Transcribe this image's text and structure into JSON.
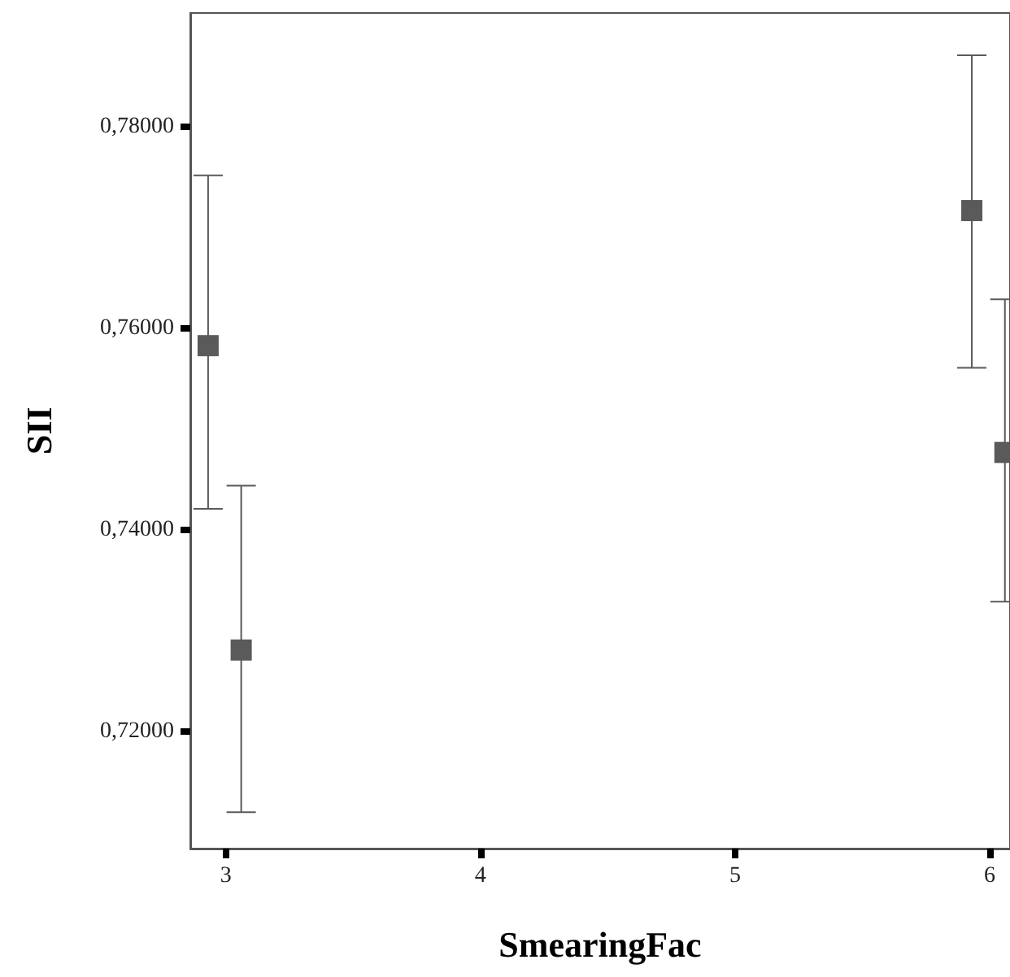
{
  "chart_data": {
    "type": "scatter",
    "xlabel": "SmearingFac",
    "ylabel": "SII",
    "x": [
      2.93,
      3.06,
      5.93,
      6.06
    ],
    "values": [
      0.7583,
      0.7281,
      0.7717,
      0.7477
    ],
    "errors": [
      [
        0.7421,
        0.7752
      ],
      [
        0.712,
        0.7444
      ],
      [
        0.7561,
        0.7871
      ],
      [
        0.7329,
        0.7629
      ]
    ],
    "color": "#5a5a5a",
    "marker": "square",
    "xlim": [
      2.86,
      6.08
    ],
    "xticks": [
      3,
      4,
      5,
      6
    ],
    "ylim": [
      0.7084,
      0.7913
    ],
    "yticks": [
      {
        "value": 0.72,
        "label": "0,72000"
      },
      {
        "value": 0.74,
        "label": "0,74000"
      },
      {
        "value": 0.76,
        "label": "0,76000"
      },
      {
        "value": 0.78,
        "label": "0,78000"
      }
    ],
    "grid": false
  }
}
